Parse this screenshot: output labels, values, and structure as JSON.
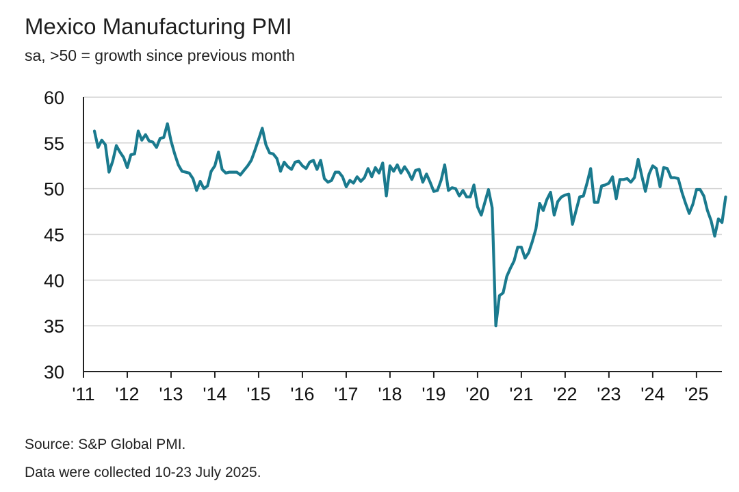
{
  "title": "Mexico Manufacturing PMI",
  "subtitle": "sa, >50 = growth since previous month",
  "footnotes": [
    "Source: S&P Global PMI.",
    "Data were collected 10-23 July 2025."
  ],
  "colors": {
    "line": "#1a7a8e",
    "grid": "#d4d4d4",
    "axis": "#222222"
  },
  "chart_data": {
    "type": "line",
    "ylim": [
      30,
      60
    ],
    "xlim": [
      2011.0,
      2025.58
    ],
    "grid": true,
    "yticks": [
      30,
      35,
      40,
      45,
      50,
      55,
      60
    ],
    "xticks": [
      {
        "value": 2011,
        "label": "'11"
      },
      {
        "value": 2012,
        "label": "'12"
      },
      {
        "value": 2013,
        "label": "'13"
      },
      {
        "value": 2014,
        "label": "'14"
      },
      {
        "value": 2015,
        "label": "'15"
      },
      {
        "value": 2016,
        "label": "'16"
      },
      {
        "value": 2017,
        "label": "'17"
      },
      {
        "value": 2018,
        "label": "'18"
      },
      {
        "value": 2019,
        "label": "'19"
      },
      {
        "value": 2020,
        "label": "'20"
      },
      {
        "value": 2021,
        "label": "'21"
      },
      {
        "value": 2022,
        "label": "'22"
      },
      {
        "value": 2023,
        "label": "'23"
      },
      {
        "value": 2024,
        "label": "'24"
      },
      {
        "value": 2025,
        "label": "'25"
      }
    ],
    "series": [
      {
        "x_start": "2011-04",
        "values": [
          56.3,
          54.5,
          55.3,
          54.8,
          51.8,
          53.0,
          54.7,
          54.0,
          53.4,
          52.3,
          53.7,
          53.8,
          56.3,
          55.3,
          55.9,
          55.2,
          55.1,
          54.5,
          55.5,
          55.6,
          57.1,
          55.2,
          53.8,
          52.6,
          51.9,
          51.8,
          51.7,
          51.1,
          49.8,
          50.8,
          50.0,
          50.3,
          51.9,
          52.5,
          54.0,
          52.1,
          51.7,
          51.8,
          51.8,
          51.8,
          51.5,
          52.0,
          52.5,
          53.1,
          54.2,
          55.4,
          56.6,
          54.8,
          53.9,
          53.8,
          53.3,
          51.9,
          52.9,
          52.4,
          52.1,
          52.9,
          53.0,
          52.5,
          52.2,
          52.9,
          53.1,
          52.1,
          53.1,
          51.1,
          50.7,
          50.9,
          51.8,
          51.8,
          51.3,
          50.2,
          50.9,
          50.6,
          51.3,
          50.8,
          51.2,
          52.2,
          51.3,
          52.3,
          51.7,
          52.8,
          49.2,
          52.5,
          51.9,
          52.6,
          51.7,
          52.4,
          51.8,
          51.0,
          52.0,
          52.1,
          50.7,
          51.6,
          50.7,
          49.7,
          49.8,
          50.9,
          52.6,
          49.8,
          50.1,
          50.0,
          49.2,
          49.8,
          49.1,
          49.1,
          50.4,
          48.0,
          47.1,
          48.5,
          49.9,
          47.9,
          35.0,
          38.3,
          38.6,
          40.4,
          41.3,
          42.1,
          43.6,
          43.6,
          42.4,
          43.0,
          44.2,
          45.6,
          48.4,
          47.6,
          48.8,
          49.6,
          47.1,
          48.6,
          49.1,
          49.3,
          49.4,
          46.1,
          47.6,
          49.1,
          49.2,
          50.6,
          52.2,
          48.5,
          48.5,
          50.3,
          50.4,
          50.6,
          51.3,
          48.9,
          51.0,
          51.0,
          51.1,
          50.7,
          51.2,
          53.2,
          51.4,
          49.7,
          51.6,
          52.5,
          52.2,
          50.2,
          52.3,
          52.2,
          51.2,
          51.2,
          51.1,
          49.6,
          48.4,
          47.3,
          48.3,
          49.9,
          49.9,
          49.2,
          47.6,
          46.5,
          44.8,
          46.7,
          46.3,
          49.1
        ]
      }
    ]
  }
}
